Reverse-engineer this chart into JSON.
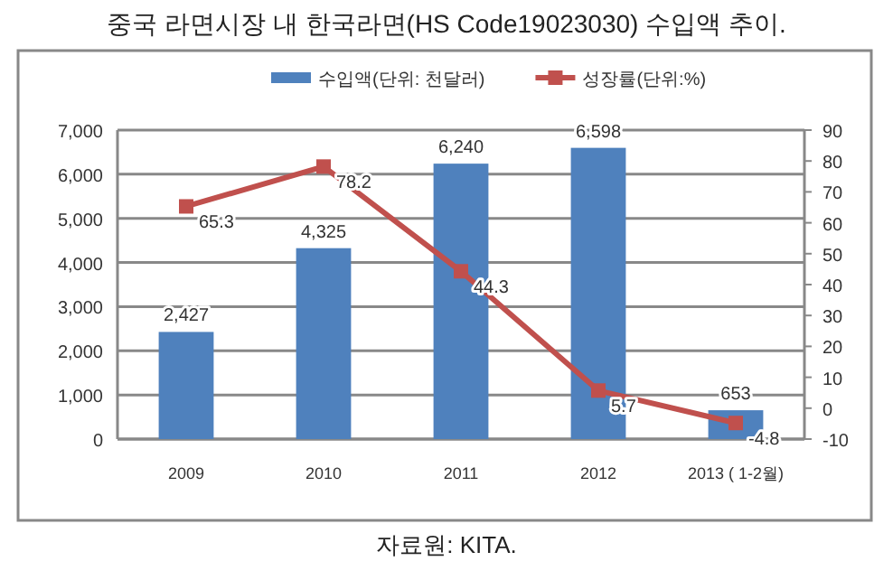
{
  "chart_data": {
    "type": "bar",
    "title": "중국 라면시장 내 한국라면(HS Code19023030) 수입액 추이.",
    "categories": [
      "2009",
      "2010",
      "2011",
      "2012",
      "2013 ( 1-2월)"
    ],
    "series": [
      {
        "name": "수입액(단위: 천달러)",
        "color": "#4f81bd",
        "values": [
          2427,
          4325,
          6240,
          6598,
          653
        ],
        "value_labels": [
          "2,427",
          "4,325",
          "6,240",
          "6,598",
          "653"
        ]
      },
      {
        "name": "성장률(단위:%)",
        "type": "line",
        "axis": "y2",
        "color": "#c0504d",
        "marker": "square",
        "values": [
          65.3,
          78.2,
          44.3,
          5.7,
          -4.8
        ]
      }
    ],
    "ylim": [
      0,
      7000
    ],
    "yticks": [
      0,
      {
        "value": 1000,
        "label": "1,000"
      },
      {
        "value": 2000,
        "label": "2,000"
      },
      {
        "value": 3000,
        "label": "3,000"
      },
      {
        "value": 4000,
        "label": "4,000"
      },
      {
        "value": 5000,
        "label": "5,000"
      },
      {
        "value": 6000,
        "label": "6,000"
      },
      {
        "value": 7000,
        "label": "7,000"
      }
    ],
    "y2lim": [
      -10,
      90
    ],
    "y2ticks": [
      -10,
      0,
      10,
      20,
      30,
      40,
      50,
      60,
      70,
      80,
      90
    ],
    "grid": "y",
    "legend": "top",
    "data_labels": true,
    "annotations": [
      "자료원: KITA."
    ]
  }
}
